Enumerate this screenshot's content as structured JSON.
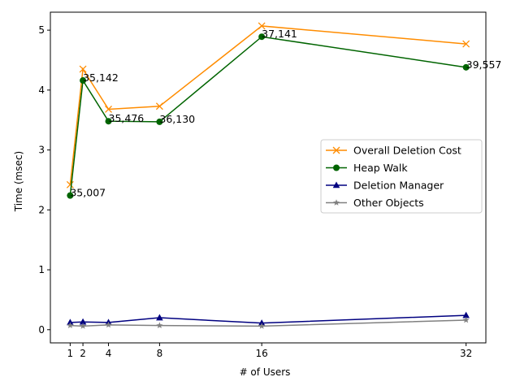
{
  "chart_data": {
    "type": "line",
    "title": "",
    "xlabel": "# of Users",
    "ylabel": "Time (msec)",
    "x": [
      1,
      2,
      4,
      8,
      16,
      32
    ],
    "xticks": [
      "1",
      "2",
      "4",
      "8",
      "16",
      "32"
    ],
    "yticks": [
      "0",
      "1",
      "2",
      "3",
      "4",
      "5"
    ],
    "xlim": [
      -0.55,
      33.55
    ],
    "ylim": [
      -0.22,
      5.3
    ],
    "grid": false,
    "legend_position": "center-right",
    "series": [
      {
        "name": "Overall Deletion Cost",
        "color": "#ff8c00",
        "marker": "x",
        "values": [
          2.42,
          4.35,
          3.68,
          3.73,
          5.07,
          4.77
        ]
      },
      {
        "name": "Heap Walk",
        "color": "#006400",
        "marker": "o",
        "values": [
          2.24,
          4.16,
          3.48,
          3.47,
          4.89,
          4.38
        ]
      },
      {
        "name": "Deletion Manager",
        "color": "#000080",
        "marker": "^",
        "values": [
          0.12,
          0.13,
          0.12,
          0.2,
          0.11,
          0.24
        ]
      },
      {
        "name": "Other Objects",
        "color": "#808080",
        "marker": "*",
        "values": [
          0.07,
          0.06,
          0.08,
          0.07,
          0.06,
          0.16
        ]
      }
    ],
    "annotations": [
      {
        "text": "35,007",
        "x": 1,
        "y": 2.24
      },
      {
        "text": "35,142",
        "x": 2,
        "y": 4.16
      },
      {
        "text": "35,476",
        "x": 4,
        "y": 3.48
      },
      {
        "text": "36,130",
        "x": 8,
        "y": 3.47
      },
      {
        "text": "37,141",
        "x": 16,
        "y": 4.89
      },
      {
        "text": "39,557",
        "x": 32,
        "y": 4.38
      }
    ]
  }
}
